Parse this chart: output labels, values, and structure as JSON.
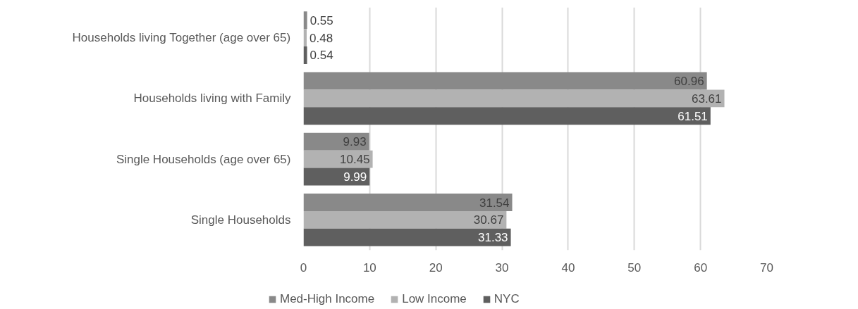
{
  "chart_data": {
    "type": "bar",
    "orientation": "horizontal",
    "categories": [
      "Households living Together (age over 65)",
      "Households living with Family",
      "Single Households (age over 65)",
      "Single Households"
    ],
    "series": [
      {
        "name": "Med-High Income",
        "color": "#898989",
        "values": [
          0.55,
          60.96,
          9.93,
          31.54
        ]
      },
      {
        "name": "Low Income",
        "color": "#b2b2b2",
        "values": [
          0.48,
          63.61,
          10.45,
          30.67
        ]
      },
      {
        "name": "NYC",
        "color": "#5f5f5f",
        "values": [
          0.54,
          61.51,
          9.99,
          31.33
        ]
      }
    ],
    "xlim": [
      0,
      70
    ],
    "xticks": [
      0,
      10,
      20,
      30,
      40,
      50,
      60,
      70
    ],
    "grid": "x",
    "legend": "bottom",
    "data_labels": true
  }
}
